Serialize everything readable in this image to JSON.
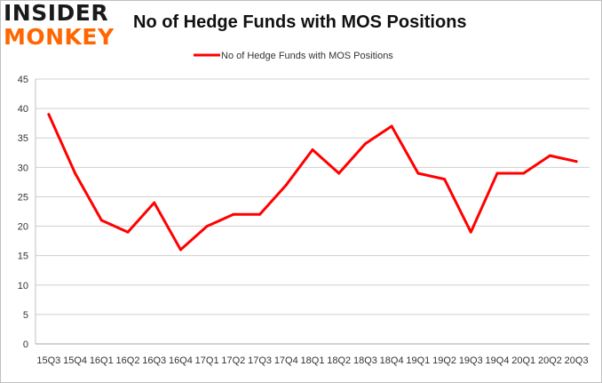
{
  "logo": {
    "line1": "INSIDER",
    "line2": "MONKEY"
  },
  "chart_data": {
    "type": "line",
    "title": "No of Hedge Funds with MOS Positions",
    "xlabel": "",
    "ylabel": "",
    "ylim": [
      0,
      45
    ],
    "yticks": [
      0,
      5,
      10,
      15,
      20,
      25,
      30,
      35,
      40,
      45
    ],
    "grid": true,
    "legend": "top-center",
    "categories": [
      "15Q3",
      "15Q4",
      "16Q1",
      "16Q2",
      "16Q3",
      "16Q4",
      "17Q1",
      "17Q2",
      "17Q3",
      "17Q4",
      "18Q1",
      "18Q2",
      "18Q3",
      "18Q4",
      "19Q1",
      "19Q2",
      "19Q3",
      "19Q4",
      "20Q1",
      "20Q2",
      "20Q3"
    ],
    "series": [
      {
        "name": "No of Hedge Funds with MOS Positions",
        "color": "#ff0000",
        "values": [
          39,
          29,
          21,
          19,
          24,
          16,
          20,
          22,
          22,
          27,
          33,
          29,
          34,
          37,
          29,
          28,
          19,
          29,
          29,
          32,
          31
        ]
      }
    ]
  }
}
